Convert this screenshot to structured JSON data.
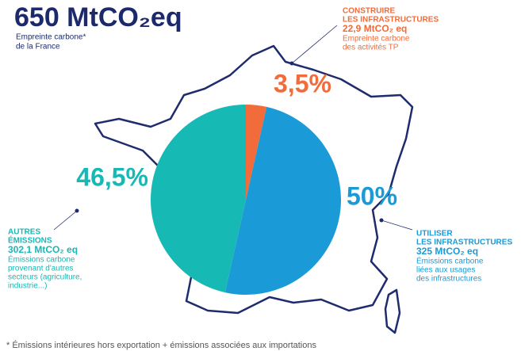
{
  "chart_data": {
    "type": "pie",
    "title": "650 MtCO₂eq",
    "subtitle_lines": [
      "Empreinte carbone*",
      "de la France"
    ],
    "values": [
      3.5,
      50,
      46.5
    ],
    "value_labels": [
      "3,5%",
      "50%",
      "46,5%"
    ],
    "colors": [
      "#f26b3a",
      "#1a9ad6",
      "#17b9b5"
    ],
    "annotations": [
      {
        "title_lines": [
          "CONSTRUIRE",
          "LES INFRASTRUCTURES"
        ],
        "amount": "22,9 MtCO₂ eq",
        "note_lines": [
          "Empreinte carbone",
          "des activités TP"
        ]
      },
      {
        "title_lines": [
          "UTILISER",
          "LES INFRASTRUCTURES"
        ],
        "amount": "325 MtCO₂ eq",
        "note_lines": [
          "Émissions carbone",
          "liées aux usages",
          "des infrastructures"
        ]
      },
      {
        "title_lines": [
          "AUTRES",
          "ÉMISSIONS"
        ],
        "amount": "302,1 MtCO₂ eq",
        "note_lines": [
          "Émissions carbone",
          "provenant d'autres",
          "secteurs (agriculture,",
          "industrie...)"
        ]
      }
    ],
    "footnote": "* Émissions intérieures hors exportation + émissions associées aux importations"
  }
}
